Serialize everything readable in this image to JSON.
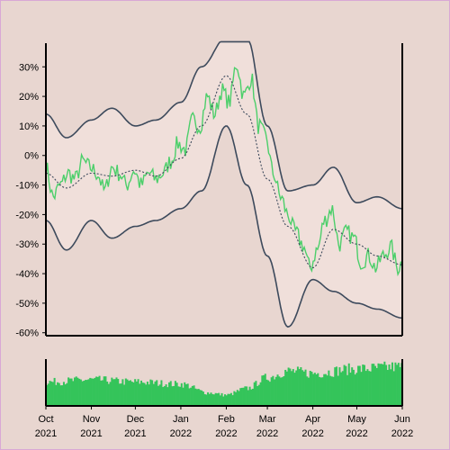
{
  "chart_data": [
    {
      "type": "line",
      "title": "",
      "xlabel": "",
      "ylabel": "",
      "x_range": [
        "2021-10-01",
        "2022-06-01"
      ],
      "ylim": [
        -61,
        38
      ],
      "y_ticks": [
        30,
        20,
        10,
        0,
        -10,
        -20,
        -30,
        -40,
        -50,
        -60
      ],
      "y_tick_labels": [
        "30%",
        "20%",
        "10%",
        "0%",
        "-10%",
        "-20%",
        "-30%",
        "-40%",
        "-50%",
        "-60%"
      ],
      "x_tick_labels": [
        {
          "month": "Oct",
          "year": "2021"
        },
        {
          "month": "Nov",
          "year": "2021"
        },
        {
          "month": "Dec",
          "year": "2021"
        },
        {
          "month": "Jan",
          "year": "2022"
        },
        {
          "month": "Feb",
          "year": "2022"
        },
        {
          "month": "Mar",
          "year": "2022"
        },
        {
          "month": "Apr",
          "year": "2022"
        },
        {
          "month": "May",
          "year": "2022"
        },
        {
          "month": "Jun",
          "year": "2022"
        }
      ],
      "x_tick_dates": [
        "2021-10-01",
        "2021-11-01",
        "2021-12-01",
        "2022-01-01",
        "2022-02-01",
        "2022-03-01",
        "2022-04-01",
        "2022-05-01",
        "2022-06-01"
      ],
      "grid": false,
      "series": [
        {
          "role": "daily value",
          "color": "#4ccf6a",
          "dates": [
            "2021-10-01",
            "2021-10-06",
            "2021-10-11",
            "2021-10-16",
            "2021-10-21",
            "2021-10-26",
            "2021-10-31",
            "2021-11-05",
            "2021-11-10",
            "2021-11-15",
            "2021-11-20",
            "2021-11-25",
            "2021-11-30",
            "2021-12-05",
            "2021-12-10",
            "2021-12-15",
            "2021-12-20",
            "2021-12-25",
            "2021-12-30",
            "2022-01-04",
            "2022-01-09",
            "2022-01-14",
            "2022-01-19",
            "2022-01-24",
            "2022-01-29",
            "2022-02-03",
            "2022-02-08",
            "2022-02-13",
            "2022-02-18",
            "2022-02-23",
            "2022-02-28",
            "2022-03-05",
            "2022-03-10",
            "2022-03-15",
            "2022-03-20",
            "2022-03-25",
            "2022-03-30",
            "2022-04-04",
            "2022-04-09",
            "2022-04-14",
            "2022-04-19",
            "2022-04-24",
            "2022-04-29",
            "2022-05-04",
            "2022-05-09",
            "2022-05-14",
            "2022-05-19",
            "2022-05-24",
            "2022-05-29",
            "2022-06-01"
          ],
          "values": [
            -4,
            -14,
            -10,
            -6,
            -8,
            -2,
            -4,
            -6,
            -12,
            -4,
            -6,
            -10,
            -5,
            -10,
            -6,
            -8,
            -6,
            -2,
            4,
            2,
            12,
            10,
            20,
            14,
            22,
            18,
            31,
            20,
            26,
            10,
            6,
            -6,
            -14,
            -20,
            -26,
            -30,
            -38,
            -32,
            -22,
            -18,
            -30,
            -26,
            -28,
            -36,
            -34,
            -38,
            -34,
            -31,
            -38,
            -36
          ]
        },
        {
          "role": "moving average",
          "color": "#3d4a5c",
          "dates": [
            "2021-10-01",
            "2021-10-15",
            "2021-11-01",
            "2021-11-15",
            "2021-12-01",
            "2021-12-15",
            "2022-01-01",
            "2022-01-15",
            "2022-02-01",
            "2022-02-15",
            "2022-03-01",
            "2022-03-15",
            "2022-04-01",
            "2022-04-15",
            "2022-05-01",
            "2022-05-15",
            "2022-06-01"
          ],
          "values": [
            -6,
            -11,
            -6,
            -7,
            -5,
            -7,
            -1,
            10,
            27,
            14,
            -8,
            -24,
            -38,
            -25,
            -30,
            -34,
            -37
          ]
        },
        {
          "role": "upper band",
          "color": "#3d4a5c",
          "dates": [
            "2021-10-01",
            "2021-10-15",
            "2021-11-01",
            "2021-11-15",
            "2021-12-01",
            "2021-12-15",
            "2022-01-01",
            "2022-01-15",
            "2022-02-01",
            "2022-02-15",
            "2022-03-01",
            "2022-03-15",
            "2022-04-01",
            "2022-04-15",
            "2022-05-01",
            "2022-05-15",
            "2022-06-01"
          ],
          "values": [
            14,
            6,
            12,
            16,
            10,
            12,
            18,
            30,
            40,
            40,
            10,
            -12,
            -10,
            -4,
            -16,
            -14,
            -18
          ]
        },
        {
          "role": "lower band",
          "color": "#3d4a5c",
          "dates": [
            "2021-10-01",
            "2021-10-15",
            "2021-11-01",
            "2021-11-15",
            "2021-12-01",
            "2021-12-15",
            "2022-01-01",
            "2022-01-15",
            "2022-02-01",
            "2022-02-15",
            "2022-03-01",
            "2022-03-15",
            "2022-04-01",
            "2022-04-15",
            "2022-05-01",
            "2022-05-15",
            "2022-06-01"
          ],
          "values": [
            -22,
            -32,
            -22,
            -28,
            -24,
            -22,
            -18,
            -12,
            10,
            -10,
            -34,
            -58,
            -42,
            -46,
            -50,
            -52,
            -55
          ]
        }
      ]
    },
    {
      "type": "bar",
      "title": "",
      "color": "#34c45a",
      "x_range": [
        "2021-10-01",
        "2022-06-01"
      ],
      "ylim": [
        0,
        1
      ],
      "volume_profile": {
        "dates": [
          "2021-10-01",
          "2021-11-01",
          "2021-12-01",
          "2022-01-01",
          "2022-01-20",
          "2022-02-01",
          "2022-02-15",
          "2022-03-01",
          "2022-03-15",
          "2022-04-01",
          "2022-05-01",
          "2022-06-01"
        ],
        "relative_values": [
          0.55,
          0.6,
          0.55,
          0.5,
          0.3,
          0.25,
          0.4,
          0.65,
          0.8,
          0.75,
          0.85,
          0.9
        ]
      }
    }
  ]
}
